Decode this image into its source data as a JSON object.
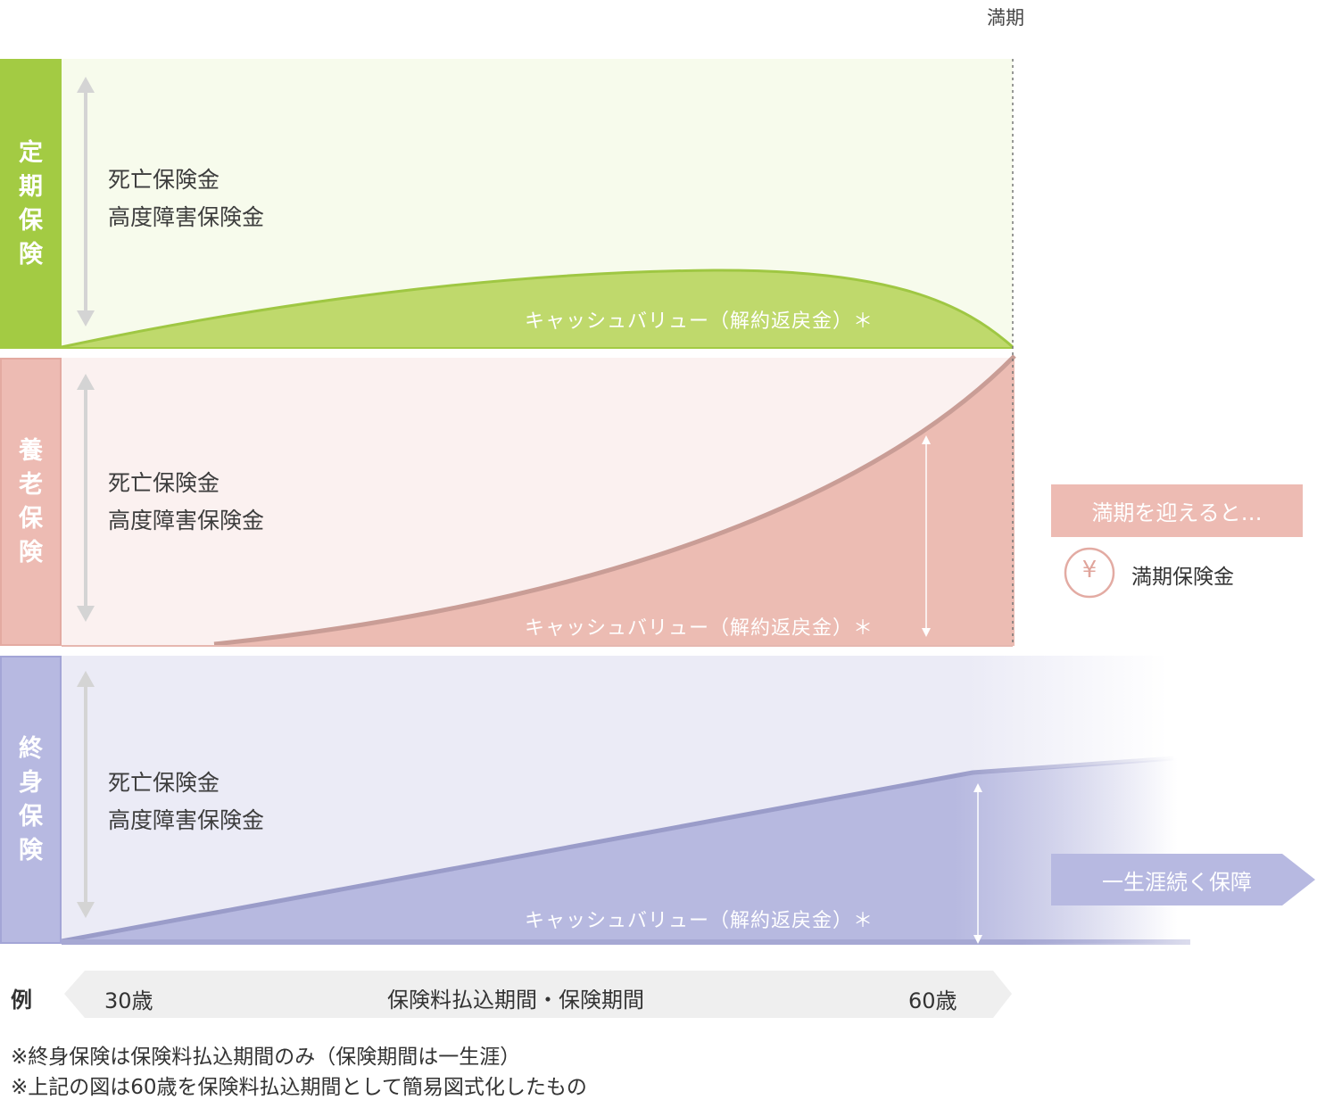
{
  "maturity_label": "満期",
  "bands": [
    {
      "id": "term",
      "label_chars": [
        "定",
        "期",
        "保",
        "険"
      ],
      "claims": [
        "死亡保険金",
        "高度障害保険金"
      ],
      "cash_value_label": "キャッシュバリュー（解約返戻金）＊",
      "colors": {
        "bar": "#a3cb43",
        "bg": "#f7fbec",
        "fill": "#bfd96c",
        "edge": "#9fc743"
      }
    },
    {
      "id": "endowment",
      "label_chars": [
        "養",
        "老",
        "保",
        "険"
      ],
      "claims": [
        "死亡保険金",
        "高度障害保険金"
      ],
      "cash_value_label": "キャッシュバリュー（解約返戻金）＊",
      "colors": {
        "bar": "#edbbb3",
        "bg": "#fbf1f0",
        "fill": "#ecbcb3",
        "edge": "#d3a39c"
      }
    },
    {
      "id": "whole-life",
      "label_chars": [
        "終",
        "身",
        "保",
        "険"
      ],
      "claims": [
        "死亡保険金",
        "高度障害保険金"
      ],
      "cash_value_label": "キャッシュバリュー（解約返戻金）＊",
      "colors": {
        "bar": "#b7b9e1",
        "bg": "#ebebf6",
        "fill": "#b7b9e0",
        "edge": "#9a9cc9"
      }
    }
  ],
  "maturity_tag": "満期を迎えると…",
  "maturity_benefit": {
    "icon": "yen-coin-icon",
    "symbol": "¥",
    "label": "満期保険金"
  },
  "lifelong_tag": "一生涯続く保障",
  "axis": {
    "example_label": "例",
    "start_age": "30歳",
    "period_label": "保険料払込期間・保険期間",
    "end_age": "60歳"
  },
  "notes": [
    "※終身保険は保険料払込期間のみ（保険期間は一生涯）",
    "※上記の図は60歳を保険料払込期間として簡易図式化したもの"
  ]
}
